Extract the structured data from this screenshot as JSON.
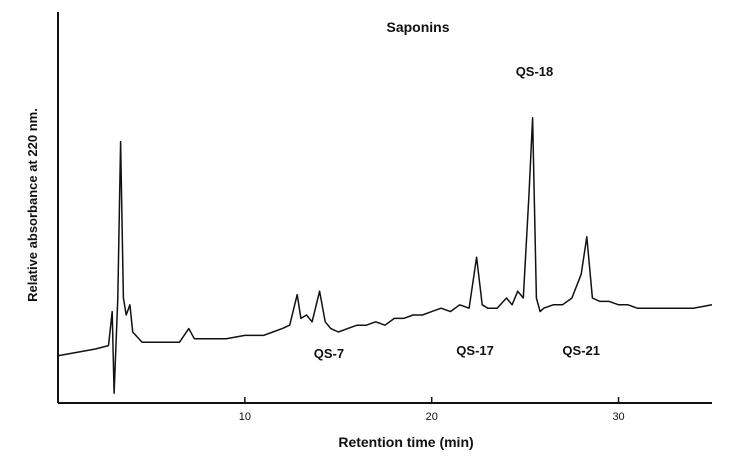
{
  "chart_data": {
    "type": "line",
    "title": "Saponins",
    "xlabel": "Retention time (min)",
    "ylabel": "Relative absorbance at 220 nm.",
    "xlim": [
      0,
      35
    ],
    "ylim": [
      0,
      100
    ],
    "x_ticks": [
      10,
      20,
      30
    ],
    "grid": false,
    "legend": "none",
    "line_color": "#111111",
    "series": [
      {
        "x": [
          0.0,
          1.0,
          2.0,
          2.7,
          2.9,
          3.0,
          3.2,
          3.35,
          3.5,
          3.65,
          3.85,
          4.0,
          4.5,
          5.5,
          6.5,
          7.0,
          7.3,
          8.0,
          9.0,
          10.0,
          11.0,
          11.5,
          12.0,
          12.4,
          12.8,
          13.0,
          13.3,
          13.6,
          14.0,
          14.3,
          14.6,
          15.0,
          15.5,
          16.0,
          16.5,
          17.0,
          17.5,
          18.0,
          18.5,
          19.0,
          19.5,
          20.0,
          20.5,
          21.0,
          21.5,
          22.0,
          22.4,
          22.7,
          23.0,
          23.5,
          24.0,
          24.3,
          24.6,
          24.9,
          25.2,
          25.4,
          25.6,
          25.8,
          26.0,
          26.5,
          27.0,
          27.5,
          28.0,
          28.3,
          28.6,
          29.0,
          29.5,
          30.0,
          30.5,
          31.0,
          31.5,
          32.0,
          33.0,
          34.0,
          35.0
        ],
        "y": [
          13,
          14,
          15,
          16,
          26,
          2,
          30,
          76,
          30,
          25,
          28,
          20,
          17,
          17,
          17,
          21,
          18,
          18,
          18,
          19,
          19,
          20,
          21,
          22,
          31,
          24,
          25,
          23,
          32,
          23,
          21,
          20,
          21,
          22,
          22,
          23,
          22,
          24,
          24,
          25,
          25,
          26,
          27,
          26,
          28,
          27,
          42,
          28,
          27,
          27,
          30,
          28,
          32,
          30,
          60,
          83,
          30,
          26,
          27,
          28,
          28,
          30,
          37,
          48,
          30,
          29,
          29,
          28,
          28,
          27,
          27,
          27,
          27,
          27,
          28
        ]
      }
    ],
    "peak_labels": [
      {
        "text": "QS-7",
        "x": 14.5
      },
      {
        "text": "QS-17",
        "x": 22.0
      },
      {
        "text": "QS-18",
        "x": 25.5
      },
      {
        "text": "QS-21",
        "x": 28.0
      }
    ]
  }
}
